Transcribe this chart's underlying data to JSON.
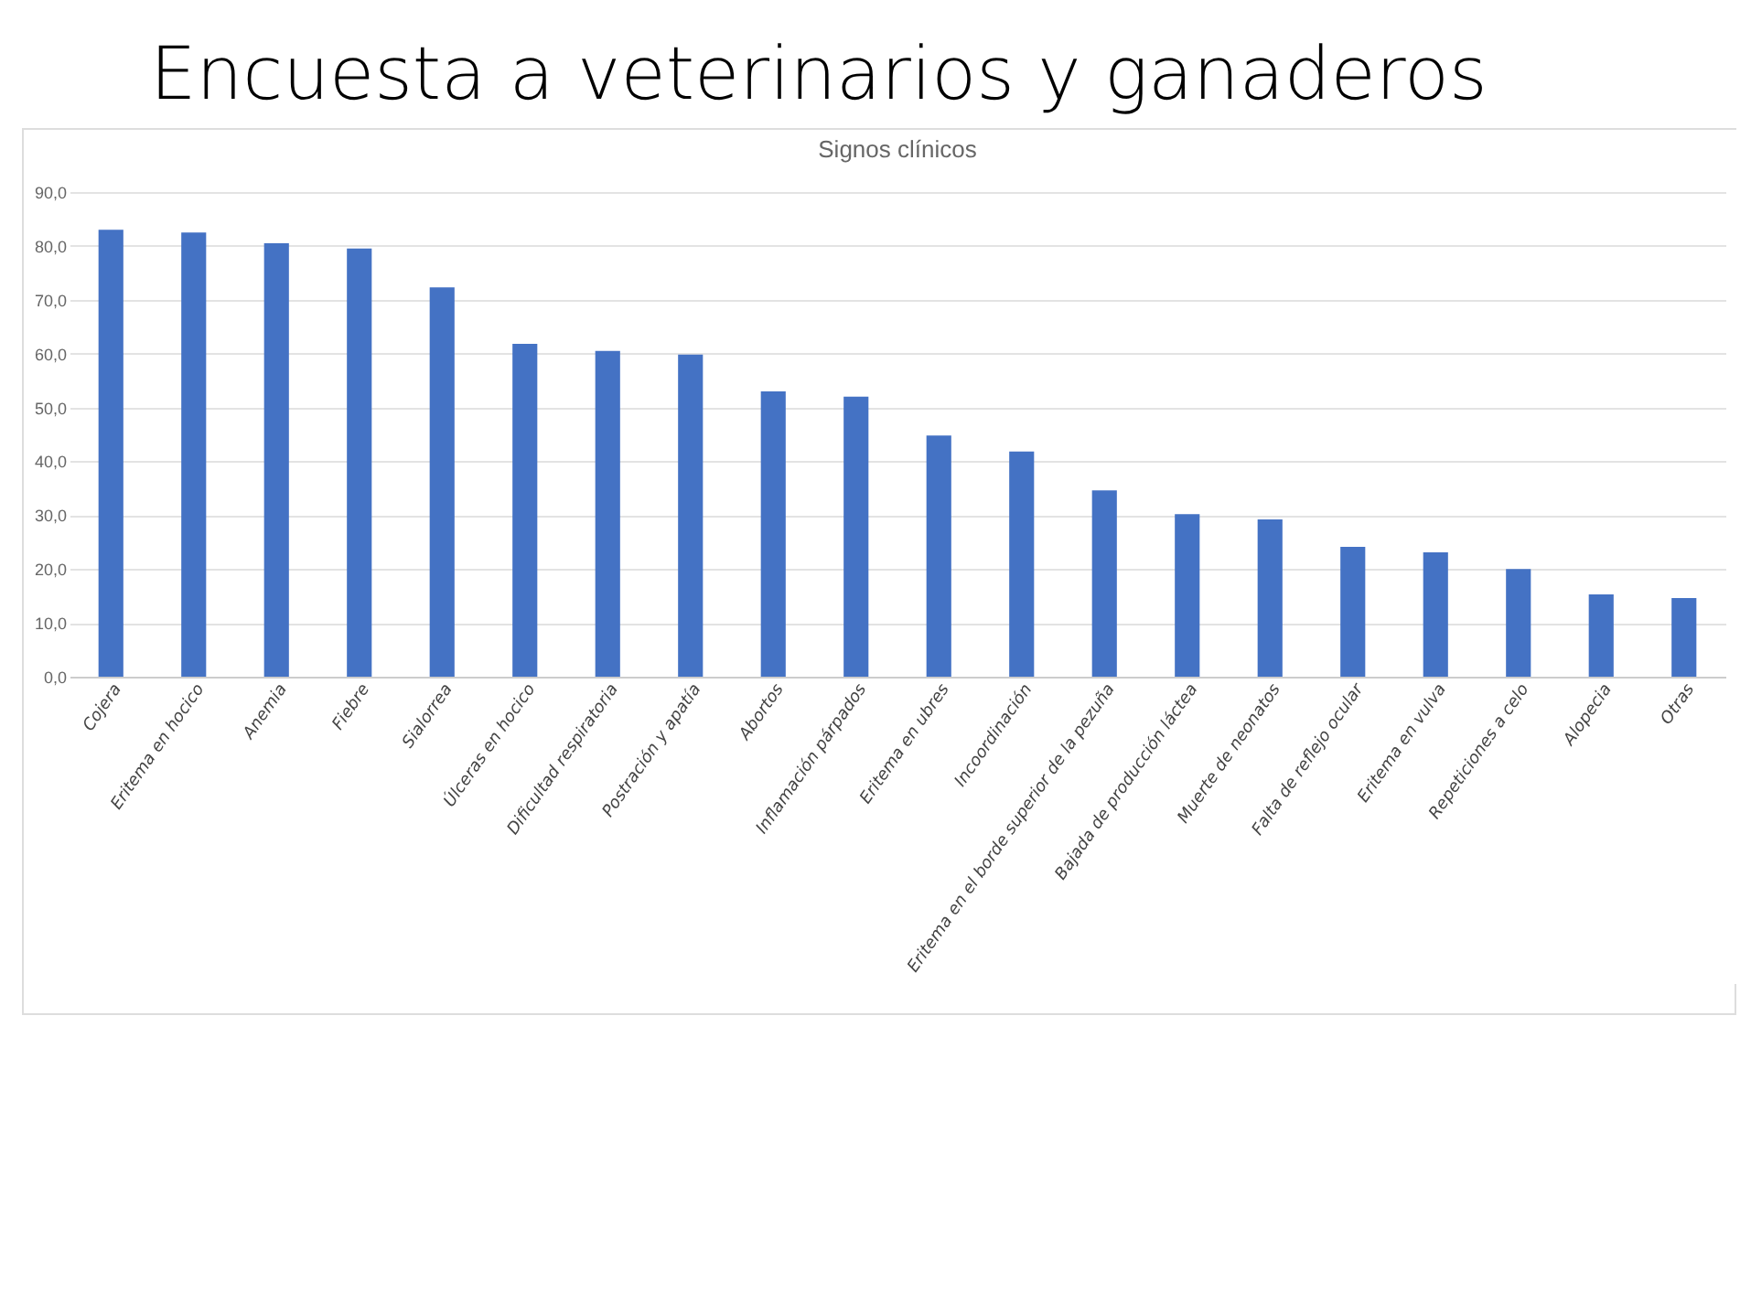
{
  "chart_data": {
    "type": "bar",
    "title": "Encuesta a veterinarios y ganaderos",
    "subtitle": "Signos clínicos",
    "categories": [
      "Cojera",
      "Eritema en hocico",
      "Anemia",
      "Fiebre",
      "Sialorrea",
      "Úlceras en hocico",
      "Dificultad respiratoria",
      "Postración y apatía",
      "Abortos",
      "Inflamación párpados",
      "Eritema en ubres",
      "Incoordinación",
      "Eritema en el borde superior de la pezuña",
      "Bajada de producción láctea",
      "Muerte de neonatos",
      "Falta de reflejo ocular",
      "Eritema en vulva",
      "Repeticiones a celo",
      "Alopecia",
      "Otras"
    ],
    "values": [
      83,
      82.5,
      80.5,
      79.5,
      72.3,
      61.8,
      60.5,
      59.8,
      53,
      52,
      44.8,
      41.8,
      34.6,
      30.2,
      29.2,
      24.1,
      23.1,
      20,
      15.3,
      14.6
    ],
    "color": "#4472c4",
    "ylim": [
      0,
      90
    ],
    "yticks": [
      {
        "value": 0,
        "label": "0,0"
      },
      {
        "value": 10,
        "label": "10,0"
      },
      {
        "value": 20,
        "label": "20,0"
      },
      {
        "value": 30,
        "label": "30,0"
      },
      {
        "value": 40,
        "label": "40,0"
      },
      {
        "value": 50,
        "label": "50,0"
      },
      {
        "value": 60,
        "label": "60,0"
      },
      {
        "value": 70,
        "label": "70,0"
      },
      {
        "value": 80,
        "label": "80,0"
      },
      {
        "value": 90,
        "label": "90,0"
      }
    ],
    "grid": true
  }
}
